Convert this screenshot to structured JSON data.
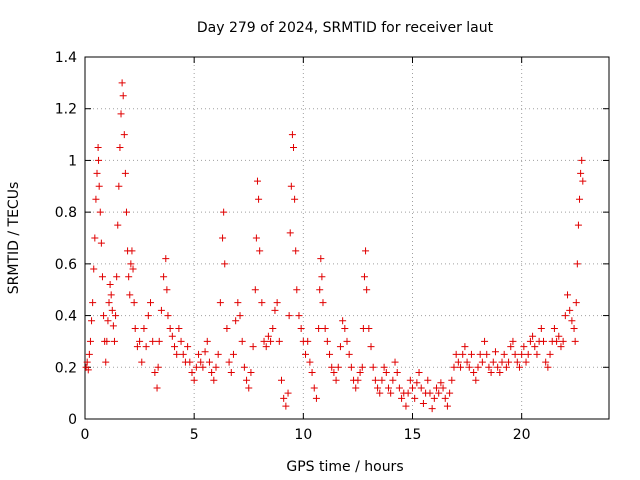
{
  "chart_data": {
    "type": "scatter",
    "title": "Day 279 of 2024, SRMTID for receiver laut",
    "xlabel": "GPS time / hours",
    "ylabel": "SRMTID / TECUs",
    "xlim": [
      0,
      24
    ],
    "ylim": [
      0,
      1.4
    ],
    "xticks": [
      0,
      5,
      10,
      15,
      20
    ],
    "xtick_labels": [
      "0",
      "5",
      "10",
      "15",
      "20"
    ],
    "yticks": [
      0,
      0.2,
      0.4,
      0.6,
      0.8,
      1.0,
      1.2,
      1.4
    ],
    "ytick_labels": [
      "0",
      "0.2",
      "0.4",
      "0.6",
      "0.8",
      "1",
      "1.2",
      "1.4"
    ],
    "grid": true,
    "marker": "plus",
    "color": "#e00000",
    "series": [
      {
        "name": "SRMTID",
        "points": [
          [
            0.05,
            0.2
          ],
          [
            0.1,
            0.22
          ],
          [
            0.15,
            0.19
          ],
          [
            0.2,
            0.25
          ],
          [
            0.25,
            0.3
          ],
          [
            0.3,
            0.38
          ],
          [
            0.35,
            0.45
          ],
          [
            0.4,
            0.58
          ],
          [
            0.45,
            0.7
          ],
          [
            0.5,
            0.85
          ],
          [
            0.55,
            0.95
          ],
          [
            0.6,
            1.05
          ],
          [
            0.62,
            1.0
          ],
          [
            0.65,
            0.9
          ],
          [
            0.7,
            0.8
          ],
          [
            0.75,
            0.68
          ],
          [
            0.8,
            0.55
          ],
          [
            0.85,
            0.4
          ],
          [
            0.9,
            0.3
          ],
          [
            0.95,
            0.22
          ],
          [
            1.0,
            0.3
          ],
          [
            1.05,
            0.38
          ],
          [
            1.1,
            0.45
          ],
          [
            1.15,
            0.52
          ],
          [
            1.2,
            0.48
          ],
          [
            1.25,
            0.42
          ],
          [
            1.3,
            0.36
          ],
          [
            1.35,
            0.3
          ],
          [
            1.4,
            0.4
          ],
          [
            1.45,
            0.55
          ],
          [
            1.5,
            0.75
          ],
          [
            1.55,
            0.9
          ],
          [
            1.6,
            1.05
          ],
          [
            1.65,
            1.18
          ],
          [
            1.7,
            1.3
          ],
          [
            1.75,
            1.25
          ],
          [
            1.8,
            1.1
          ],
          [
            1.85,
            0.95
          ],
          [
            1.9,
            0.8
          ],
          [
            1.95,
            0.65
          ],
          [
            2.0,
            0.55
          ],
          [
            2.05,
            0.48
          ],
          [
            2.1,
            0.6
          ],
          [
            2.15,
            0.65
          ],
          [
            2.2,
            0.58
          ],
          [
            2.25,
            0.45
          ],
          [
            2.3,
            0.35
          ],
          [
            2.4,
            0.28
          ],
          [
            2.5,
            0.3
          ],
          [
            2.6,
            0.22
          ],
          [
            2.7,
            0.35
          ],
          [
            2.8,
            0.28
          ],
          [
            2.9,
            0.4
          ],
          [
            3.0,
            0.45
          ],
          [
            3.1,
            0.3
          ],
          [
            3.2,
            0.18
          ],
          [
            3.3,
            0.12
          ],
          [
            3.35,
            0.2
          ],
          [
            3.4,
            0.3
          ],
          [
            3.5,
            0.42
          ],
          [
            3.6,
            0.55
          ],
          [
            3.7,
            0.62
          ],
          [
            3.75,
            0.5
          ],
          [
            3.8,
            0.4
          ],
          [
            3.9,
            0.35
          ],
          [
            4.0,
            0.32
          ],
          [
            4.1,
            0.28
          ],
          [
            4.2,
            0.25
          ],
          [
            4.3,
            0.35
          ],
          [
            4.4,
            0.3
          ],
          [
            4.5,
            0.25
          ],
          [
            4.6,
            0.22
          ],
          [
            4.7,
            0.28
          ],
          [
            4.8,
            0.22
          ],
          [
            4.9,
            0.18
          ],
          [
            5.0,
            0.15
          ],
          [
            5.1,
            0.2
          ],
          [
            5.2,
            0.25
          ],
          [
            5.3,
            0.22
          ],
          [
            5.4,
            0.2
          ],
          [
            5.5,
            0.26
          ],
          [
            5.6,
            0.3
          ],
          [
            5.7,
            0.22
          ],
          [
            5.8,
            0.18
          ],
          [
            5.9,
            0.15
          ],
          [
            6.0,
            0.2
          ],
          [
            6.1,
            0.25
          ],
          [
            6.2,
            0.45
          ],
          [
            6.3,
            0.7
          ],
          [
            6.35,
            0.8
          ],
          [
            6.4,
            0.6
          ],
          [
            6.5,
            0.35
          ],
          [
            6.6,
            0.22
          ],
          [
            6.7,
            0.18
          ],
          [
            6.8,
            0.25
          ],
          [
            6.9,
            0.38
          ],
          [
            7.0,
            0.45
          ],
          [
            7.1,
            0.4
          ],
          [
            7.2,
            0.3
          ],
          [
            7.3,
            0.2
          ],
          [
            7.4,
            0.15
          ],
          [
            7.5,
            0.12
          ],
          [
            7.6,
            0.18
          ],
          [
            7.7,
            0.28
          ],
          [
            7.8,
            0.5
          ],
          [
            7.85,
            0.7
          ],
          [
            7.9,
            0.92
          ],
          [
            7.95,
            0.85
          ],
          [
            8.0,
            0.65
          ],
          [
            8.1,
            0.45
          ],
          [
            8.2,
            0.3
          ],
          [
            8.3,
            0.28
          ],
          [
            8.4,
            0.32
          ],
          [
            8.5,
            0.3
          ],
          [
            8.6,
            0.35
          ],
          [
            8.7,
            0.42
          ],
          [
            8.8,
            0.45
          ],
          [
            8.9,
            0.3
          ],
          [
            9.0,
            0.15
          ],
          [
            9.1,
            0.08
          ],
          [
            9.2,
            0.05
          ],
          [
            9.3,
            0.1
          ],
          [
            9.35,
            0.4
          ],
          [
            9.4,
            0.72
          ],
          [
            9.45,
            0.9
          ],
          [
            9.5,
            1.1
          ],
          [
            9.55,
            1.05
          ],
          [
            9.6,
            0.85
          ],
          [
            9.65,
            0.65
          ],
          [
            9.7,
            0.5
          ],
          [
            9.8,
            0.4
          ],
          [
            9.9,
            0.35
          ],
          [
            10.0,
            0.3
          ],
          [
            10.1,
            0.25
          ],
          [
            10.2,
            0.3
          ],
          [
            10.3,
            0.22
          ],
          [
            10.4,
            0.18
          ],
          [
            10.5,
            0.12
          ],
          [
            10.6,
            0.08
          ],
          [
            10.7,
            0.35
          ],
          [
            10.75,
            0.5
          ],
          [
            10.8,
            0.62
          ],
          [
            10.85,
            0.55
          ],
          [
            10.9,
            0.45
          ],
          [
            11.0,
            0.35
          ],
          [
            11.1,
            0.3
          ],
          [
            11.2,
            0.25
          ],
          [
            11.3,
            0.2
          ],
          [
            11.4,
            0.18
          ],
          [
            11.5,
            0.15
          ],
          [
            11.6,
            0.2
          ],
          [
            11.7,
            0.28
          ],
          [
            11.8,
            0.38
          ],
          [
            11.9,
            0.35
          ],
          [
            12.0,
            0.3
          ],
          [
            12.1,
            0.25
          ],
          [
            12.2,
            0.2
          ],
          [
            12.3,
            0.15
          ],
          [
            12.4,
            0.12
          ],
          [
            12.5,
            0.15
          ],
          [
            12.6,
            0.18
          ],
          [
            12.7,
            0.2
          ],
          [
            12.75,
            0.35
          ],
          [
            12.8,
            0.55
          ],
          [
            12.85,
            0.65
          ],
          [
            12.9,
            0.5
          ],
          [
            13.0,
            0.35
          ],
          [
            13.1,
            0.28
          ],
          [
            13.2,
            0.2
          ],
          [
            13.3,
            0.15
          ],
          [
            13.4,
            0.12
          ],
          [
            13.5,
            0.1
          ],
          [
            13.6,
            0.15
          ],
          [
            13.7,
            0.2
          ],
          [
            13.8,
            0.18
          ],
          [
            13.9,
            0.12
          ],
          [
            14.0,
            0.1
          ],
          [
            14.1,
            0.15
          ],
          [
            14.2,
            0.22
          ],
          [
            14.3,
            0.18
          ],
          [
            14.4,
            0.12
          ],
          [
            14.5,
            0.08
          ],
          [
            14.6,
            0.1
          ],
          [
            14.7,
            0.05
          ],
          [
            14.8,
            0.1
          ],
          [
            14.9,
            0.15
          ],
          [
            15.0,
            0.12
          ],
          [
            15.1,
            0.08
          ],
          [
            15.2,
            0.14
          ],
          [
            15.3,
            0.18
          ],
          [
            15.4,
            0.12
          ],
          [
            15.5,
            0.06
          ],
          [
            15.6,
            0.1
          ],
          [
            15.7,
            0.15
          ],
          [
            15.8,
            0.1
          ],
          [
            15.9,
            0.04
          ],
          [
            16.0,
            0.08
          ],
          [
            16.1,
            0.12
          ],
          [
            16.2,
            0.1
          ],
          [
            16.3,
            0.14
          ],
          [
            16.4,
            0.12
          ],
          [
            16.5,
            0.08
          ],
          [
            16.6,
            0.05
          ],
          [
            16.7,
            0.1
          ],
          [
            16.8,
            0.15
          ],
          [
            16.9,
            0.2
          ],
          [
            17.0,
            0.25
          ],
          [
            17.1,
            0.22
          ],
          [
            17.2,
            0.2
          ],
          [
            17.3,
            0.25
          ],
          [
            17.4,
            0.28
          ],
          [
            17.5,
            0.22
          ],
          [
            17.6,
            0.2
          ],
          [
            17.7,
            0.25
          ],
          [
            17.8,
            0.18
          ],
          [
            17.9,
            0.15
          ],
          [
            18.0,
            0.2
          ],
          [
            18.1,
            0.25
          ],
          [
            18.2,
            0.22
          ],
          [
            18.3,
            0.3
          ],
          [
            18.4,
            0.25
          ],
          [
            18.5,
            0.2
          ],
          [
            18.6,
            0.18
          ],
          [
            18.7,
            0.22
          ],
          [
            18.8,
            0.26
          ],
          [
            18.9,
            0.2
          ],
          [
            19.0,
            0.18
          ],
          [
            19.1,
            0.22
          ],
          [
            19.2,
            0.25
          ],
          [
            19.3,
            0.2
          ],
          [
            19.4,
            0.22
          ],
          [
            19.5,
            0.28
          ],
          [
            19.6,
            0.3
          ],
          [
            19.7,
            0.25
          ],
          [
            19.8,
            0.22
          ],
          [
            19.9,
            0.2
          ],
          [
            20.0,
            0.25
          ],
          [
            20.1,
            0.28
          ],
          [
            20.2,
            0.22
          ],
          [
            20.3,
            0.25
          ],
          [
            20.4,
            0.3
          ],
          [
            20.5,
            0.32
          ],
          [
            20.6,
            0.28
          ],
          [
            20.7,
            0.25
          ],
          [
            20.8,
            0.3
          ],
          [
            20.9,
            0.35
          ],
          [
            21.0,
            0.3
          ],
          [
            21.1,
            0.22
          ],
          [
            21.2,
            0.2
          ],
          [
            21.3,
            0.25
          ],
          [
            21.4,
            0.3
          ],
          [
            21.5,
            0.35
          ],
          [
            21.6,
            0.3
          ],
          [
            21.7,
            0.32
          ],
          [
            21.8,
            0.28
          ],
          [
            21.9,
            0.3
          ],
          [
            22.0,
            0.4
          ],
          [
            22.1,
            0.48
          ],
          [
            22.2,
            0.42
          ],
          [
            22.3,
            0.38
          ],
          [
            22.4,
            0.35
          ],
          [
            22.45,
            0.3
          ],
          [
            22.5,
            0.45
          ],
          [
            22.55,
            0.6
          ],
          [
            22.6,
            0.75
          ],
          [
            22.65,
            0.85
          ],
          [
            22.7,
            0.95
          ],
          [
            22.75,
            1.0
          ],
          [
            22.8,
            0.92
          ]
        ]
      }
    ]
  }
}
